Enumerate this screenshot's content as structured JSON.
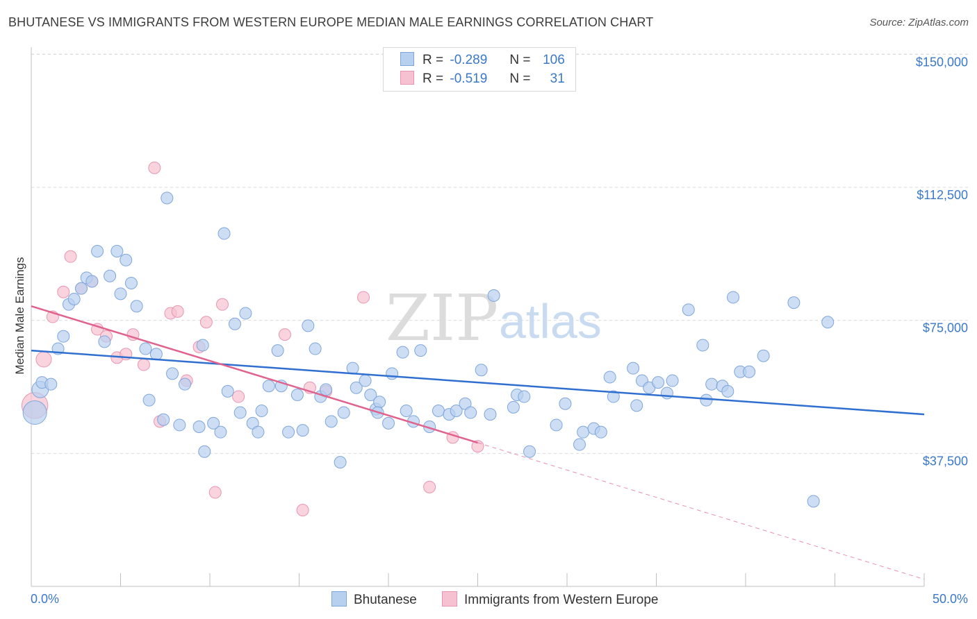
{
  "title": "BHUTANESE VS IMMIGRANTS FROM WESTERN EUROPE MEDIAN MALE EARNINGS CORRELATION CHART",
  "source": "Source: ZipAtlas.com",
  "watermark": {
    "zip": "ZIP",
    "atlas": "atlas"
  },
  "legend": {
    "series1": {
      "r_label": "R =",
      "r_value": "-0.289",
      "n_label": "N =",
      "n_value": "106"
    },
    "series2": {
      "r_label": "R =",
      "r_value": "-0.519",
      "n_label": "N =",
      "n_value": "31"
    }
  },
  "bottom_legend": {
    "series1": "Bhutanese",
    "series2": "Immigrants from Western Europe"
  },
  "colors": {
    "blue_fill": "#b8d0f0",
    "blue_stroke": "#7ea6db",
    "blue_line": "#2f6fd0",
    "pink_fill": "#f6c2d2",
    "pink_stroke": "#e995b0",
    "pink_line": "#e0628d",
    "grid": "#d9d9d9",
    "tick_text": "#3a78c9"
  },
  "chart_data": {
    "type": "scatter",
    "title": "BHUTANESE VS IMMIGRANTS FROM WESTERN EUROPE MEDIAN MALE EARNINGS CORRELATION CHART",
    "xlabel": "",
    "ylabel": "Median Male Earnings",
    "xlim": [
      0,
      50
    ],
    "ylim": [
      0,
      155000
    ],
    "x_tick_labels": [
      "0.0%",
      "50.0%"
    ],
    "y_ticks": [
      37500,
      75000,
      112500,
      150000
    ],
    "y_tick_labels": [
      "$37,500",
      "$75,000",
      "$112,500",
      "$150,000"
    ],
    "grid": "horizontal dashed",
    "legend_position": "top-center",
    "series": [
      {
        "name": "Bhutanese",
        "trend": {
          "x0": 0,
          "y0": 66500,
          "x1": 50,
          "y1": 48500
        },
        "points": [
          [
            0.2,
            49000,
            2
          ],
          [
            0.5,
            55500,
            1.4
          ],
          [
            0.6,
            57500,
            1
          ],
          [
            1.1,
            57000,
            1
          ],
          [
            1.5,
            67000,
            1
          ],
          [
            1.8,
            70500,
            1
          ],
          [
            2.1,
            79500,
            1
          ],
          [
            2.4,
            81000,
            1
          ],
          [
            2.8,
            84000,
            1
          ],
          [
            3.1,
            87000,
            1
          ],
          [
            3.4,
            86000,
            1
          ],
          [
            3.7,
            94500,
            1
          ],
          [
            4.1,
            69000,
            1
          ],
          [
            4.4,
            87500,
            1
          ],
          [
            4.8,
            94500,
            1
          ],
          [
            5.0,
            82500,
            1
          ],
          [
            5.3,
            92000,
            1
          ],
          [
            5.6,
            85500,
            1
          ],
          [
            5.9,
            79000,
            1
          ],
          [
            6.4,
            67000,
            1
          ],
          [
            6.6,
            52500,
            1
          ],
          [
            7.0,
            65500,
            1
          ],
          [
            7.4,
            47000,
            1
          ],
          [
            7.6,
            109500,
            1
          ],
          [
            7.9,
            60000,
            1
          ],
          [
            8.3,
            45500,
            1
          ],
          [
            8.6,
            57000,
            1
          ],
          [
            9.4,
            45000,
            1
          ],
          [
            9.6,
            68000,
            1
          ],
          [
            9.7,
            38000,
            1
          ],
          [
            10.2,
            46000,
            1
          ],
          [
            10.6,
            43500,
            1
          ],
          [
            10.8,
            99500,
            1
          ],
          [
            11.0,
            55000,
            1
          ],
          [
            11.4,
            74000,
            1
          ],
          [
            11.7,
            49000,
            1
          ],
          [
            12.0,
            77000,
            1
          ],
          [
            12.4,
            46000,
            1
          ],
          [
            12.7,
            43500,
            1
          ],
          [
            12.9,
            49500,
            1
          ],
          [
            13.3,
            56500,
            1
          ],
          [
            13.8,
            66500,
            1
          ],
          [
            14.0,
            56500,
            1
          ],
          [
            14.4,
            43500,
            1
          ],
          [
            14.9,
            54000,
            1
          ],
          [
            15.2,
            44000,
            1
          ],
          [
            15.5,
            73500,
            1
          ],
          [
            15.9,
            67000,
            1
          ],
          [
            16.2,
            53500,
            1
          ],
          [
            16.5,
            55500,
            1
          ],
          [
            16.8,
            46500,
            1
          ],
          [
            17.3,
            35000,
            1
          ],
          [
            17.5,
            49000,
            1
          ],
          [
            18.0,
            61500,
            1
          ],
          [
            18.2,
            56000,
            1
          ],
          [
            18.7,
            58000,
            1
          ],
          [
            19.0,
            54000,
            1
          ],
          [
            19.3,
            50000,
            1
          ],
          [
            19.5,
            52000,
            1
          ],
          [
            19.4,
            49000,
            1
          ],
          [
            20.0,
            46000,
            1
          ],
          [
            20.2,
            60000,
            1
          ],
          [
            20.8,
            66000,
            1
          ],
          [
            21.0,
            49500,
            1
          ],
          [
            21.4,
            46500,
            1
          ],
          [
            21.8,
            66500,
            1
          ],
          [
            22.3,
            45000,
            1
          ],
          [
            22.8,
            49500,
            1
          ],
          [
            23.4,
            48500,
            1
          ],
          [
            23.8,
            49500,
            1
          ],
          [
            24.3,
            51500,
            1
          ],
          [
            24.6,
            49000,
            1
          ],
          [
            25.2,
            61000,
            1
          ],
          [
            25.7,
            48500,
            1
          ],
          [
            25.9,
            82000,
            1
          ],
          [
            27.0,
            50500,
            1
          ],
          [
            27.2,
            54000,
            1
          ],
          [
            27.6,
            53500,
            1
          ],
          [
            27.9,
            38000,
            1
          ],
          [
            29.4,
            45500,
            1
          ],
          [
            29.9,
            51500,
            1
          ],
          [
            30.7,
            40000,
            1
          ],
          [
            30.9,
            43500,
            1
          ],
          [
            31.5,
            44500,
            1
          ],
          [
            31.9,
            43500,
            1
          ],
          [
            32.4,
            59000,
            1
          ],
          [
            32.6,
            53500,
            1
          ],
          [
            33.7,
            61500,
            1
          ],
          [
            33.9,
            51000,
            1
          ],
          [
            34.2,
            58000,
            1
          ],
          [
            34.6,
            56000,
            1
          ],
          [
            35.1,
            57500,
            1
          ],
          [
            35.6,
            54500,
            1
          ],
          [
            35.9,
            58000,
            1
          ],
          [
            36.8,
            78000,
            1
          ],
          [
            37.8,
            52500,
            1
          ],
          [
            37.6,
            68000,
            1
          ],
          [
            38.1,
            57000,
            1
          ],
          [
            38.7,
            56500,
            1
          ],
          [
            39.0,
            55000,
            1
          ],
          [
            39.3,
            81500,
            1
          ],
          [
            39.7,
            60500,
            1
          ],
          [
            40.2,
            60500,
            1
          ],
          [
            41.0,
            65000,
            1
          ],
          [
            42.7,
            80000,
            1
          ],
          [
            43.8,
            24000,
            1
          ],
          [
            44.6,
            74500,
            1
          ]
        ]
      },
      {
        "name": "Immigrants from Western Europe",
        "trend": {
          "x0": 0,
          "y0": 79000,
          "x1": 25,
          "y1": 40500,
          "dash_x1": 50,
          "dash_y1": 2000
        },
        "points": [
          [
            0.2,
            51000,
            2.2
          ],
          [
            0.7,
            64000,
            1.3
          ],
          [
            1.2,
            76000,
            1
          ],
          [
            1.8,
            83000,
            1
          ],
          [
            2.2,
            93000,
            1
          ],
          [
            2.8,
            84000,
            1
          ],
          [
            3.4,
            86000,
            1
          ],
          [
            3.7,
            72500,
            1
          ],
          [
            4.2,
            70500,
            1
          ],
          [
            4.8,
            64500,
            1
          ],
          [
            5.3,
            65500,
            1
          ],
          [
            5.7,
            71000,
            1
          ],
          [
            6.3,
            62500,
            1
          ],
          [
            6.9,
            118000,
            1
          ],
          [
            7.2,
            46500,
            1
          ],
          [
            7.8,
            77000,
            1
          ],
          [
            8.2,
            77500,
            1
          ],
          [
            8.7,
            58000,
            1
          ],
          [
            9.4,
            67500,
            1
          ],
          [
            9.8,
            74500,
            1
          ],
          [
            10.3,
            26500,
            1
          ],
          [
            10.7,
            79500,
            1
          ],
          [
            11.6,
            53500,
            1
          ],
          [
            14.2,
            71000,
            1
          ],
          [
            15.2,
            21500,
            1
          ],
          [
            15.6,
            56000,
            1
          ],
          [
            16.5,
            55000,
            1
          ],
          [
            18.6,
            81500,
            1
          ],
          [
            22.3,
            28000,
            1
          ],
          [
            23.6,
            42000,
            1
          ],
          [
            25.0,
            39500,
            1
          ]
        ]
      }
    ]
  }
}
